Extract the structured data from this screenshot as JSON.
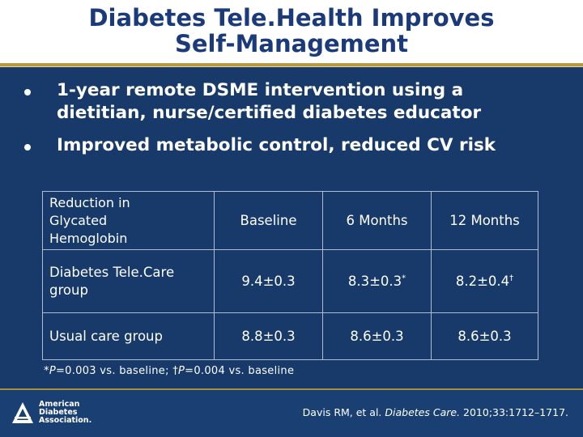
{
  "slide": {
    "title_line1": "Diabetes Tele.Health Improves",
    "title_line2": "Self-Management",
    "bullets": [
      {
        "line1": "1-year remote DSME intervention using a",
        "line2": "dietitian, nurse/certified diabetes educator"
      },
      {
        "line1": "Improved metabolic control, reduced CV risk"
      }
    ]
  },
  "table": {
    "corner_label": [
      "Reduction in",
      "Glycated",
      "Hemoglobin"
    ],
    "columns": [
      "Baseline",
      "6 Months",
      "12 Months"
    ],
    "rows": [
      {
        "label_line1": "Diabetes Tele.Care",
        "label_line2": "group",
        "values": [
          "9.4±0.3",
          "8.3±0.3",
          "8.2±0.4"
        ],
        "marks": [
          "",
          "*",
          "†"
        ]
      },
      {
        "label_line1": "Usual care group",
        "label_line2": "",
        "values": [
          "8.8±0.3",
          "8.6±0.3",
          "8.6±0.3"
        ],
        "marks": [
          "",
          "",
          ""
        ]
      }
    ]
  },
  "footnote": {
    "mark1": "*",
    "p1": "P",
    "text1": "=0.003 vs. baseline; ",
    "mark2": "†",
    "p2": "P",
    "text2": "=0.004 vs. baseline"
  },
  "citation": {
    "authors": "Davis RM, et al. ",
    "journal": "Diabetes Care.",
    "details": " 2010;33:1712–1717."
  },
  "logo": {
    "line1": "American",
    "line2": "Diabetes",
    "line3": "Association."
  },
  "colors": {
    "background": "#173a6b",
    "title_text": "#1b3a7a",
    "accent_rule": "#b79a3e"
  }
}
